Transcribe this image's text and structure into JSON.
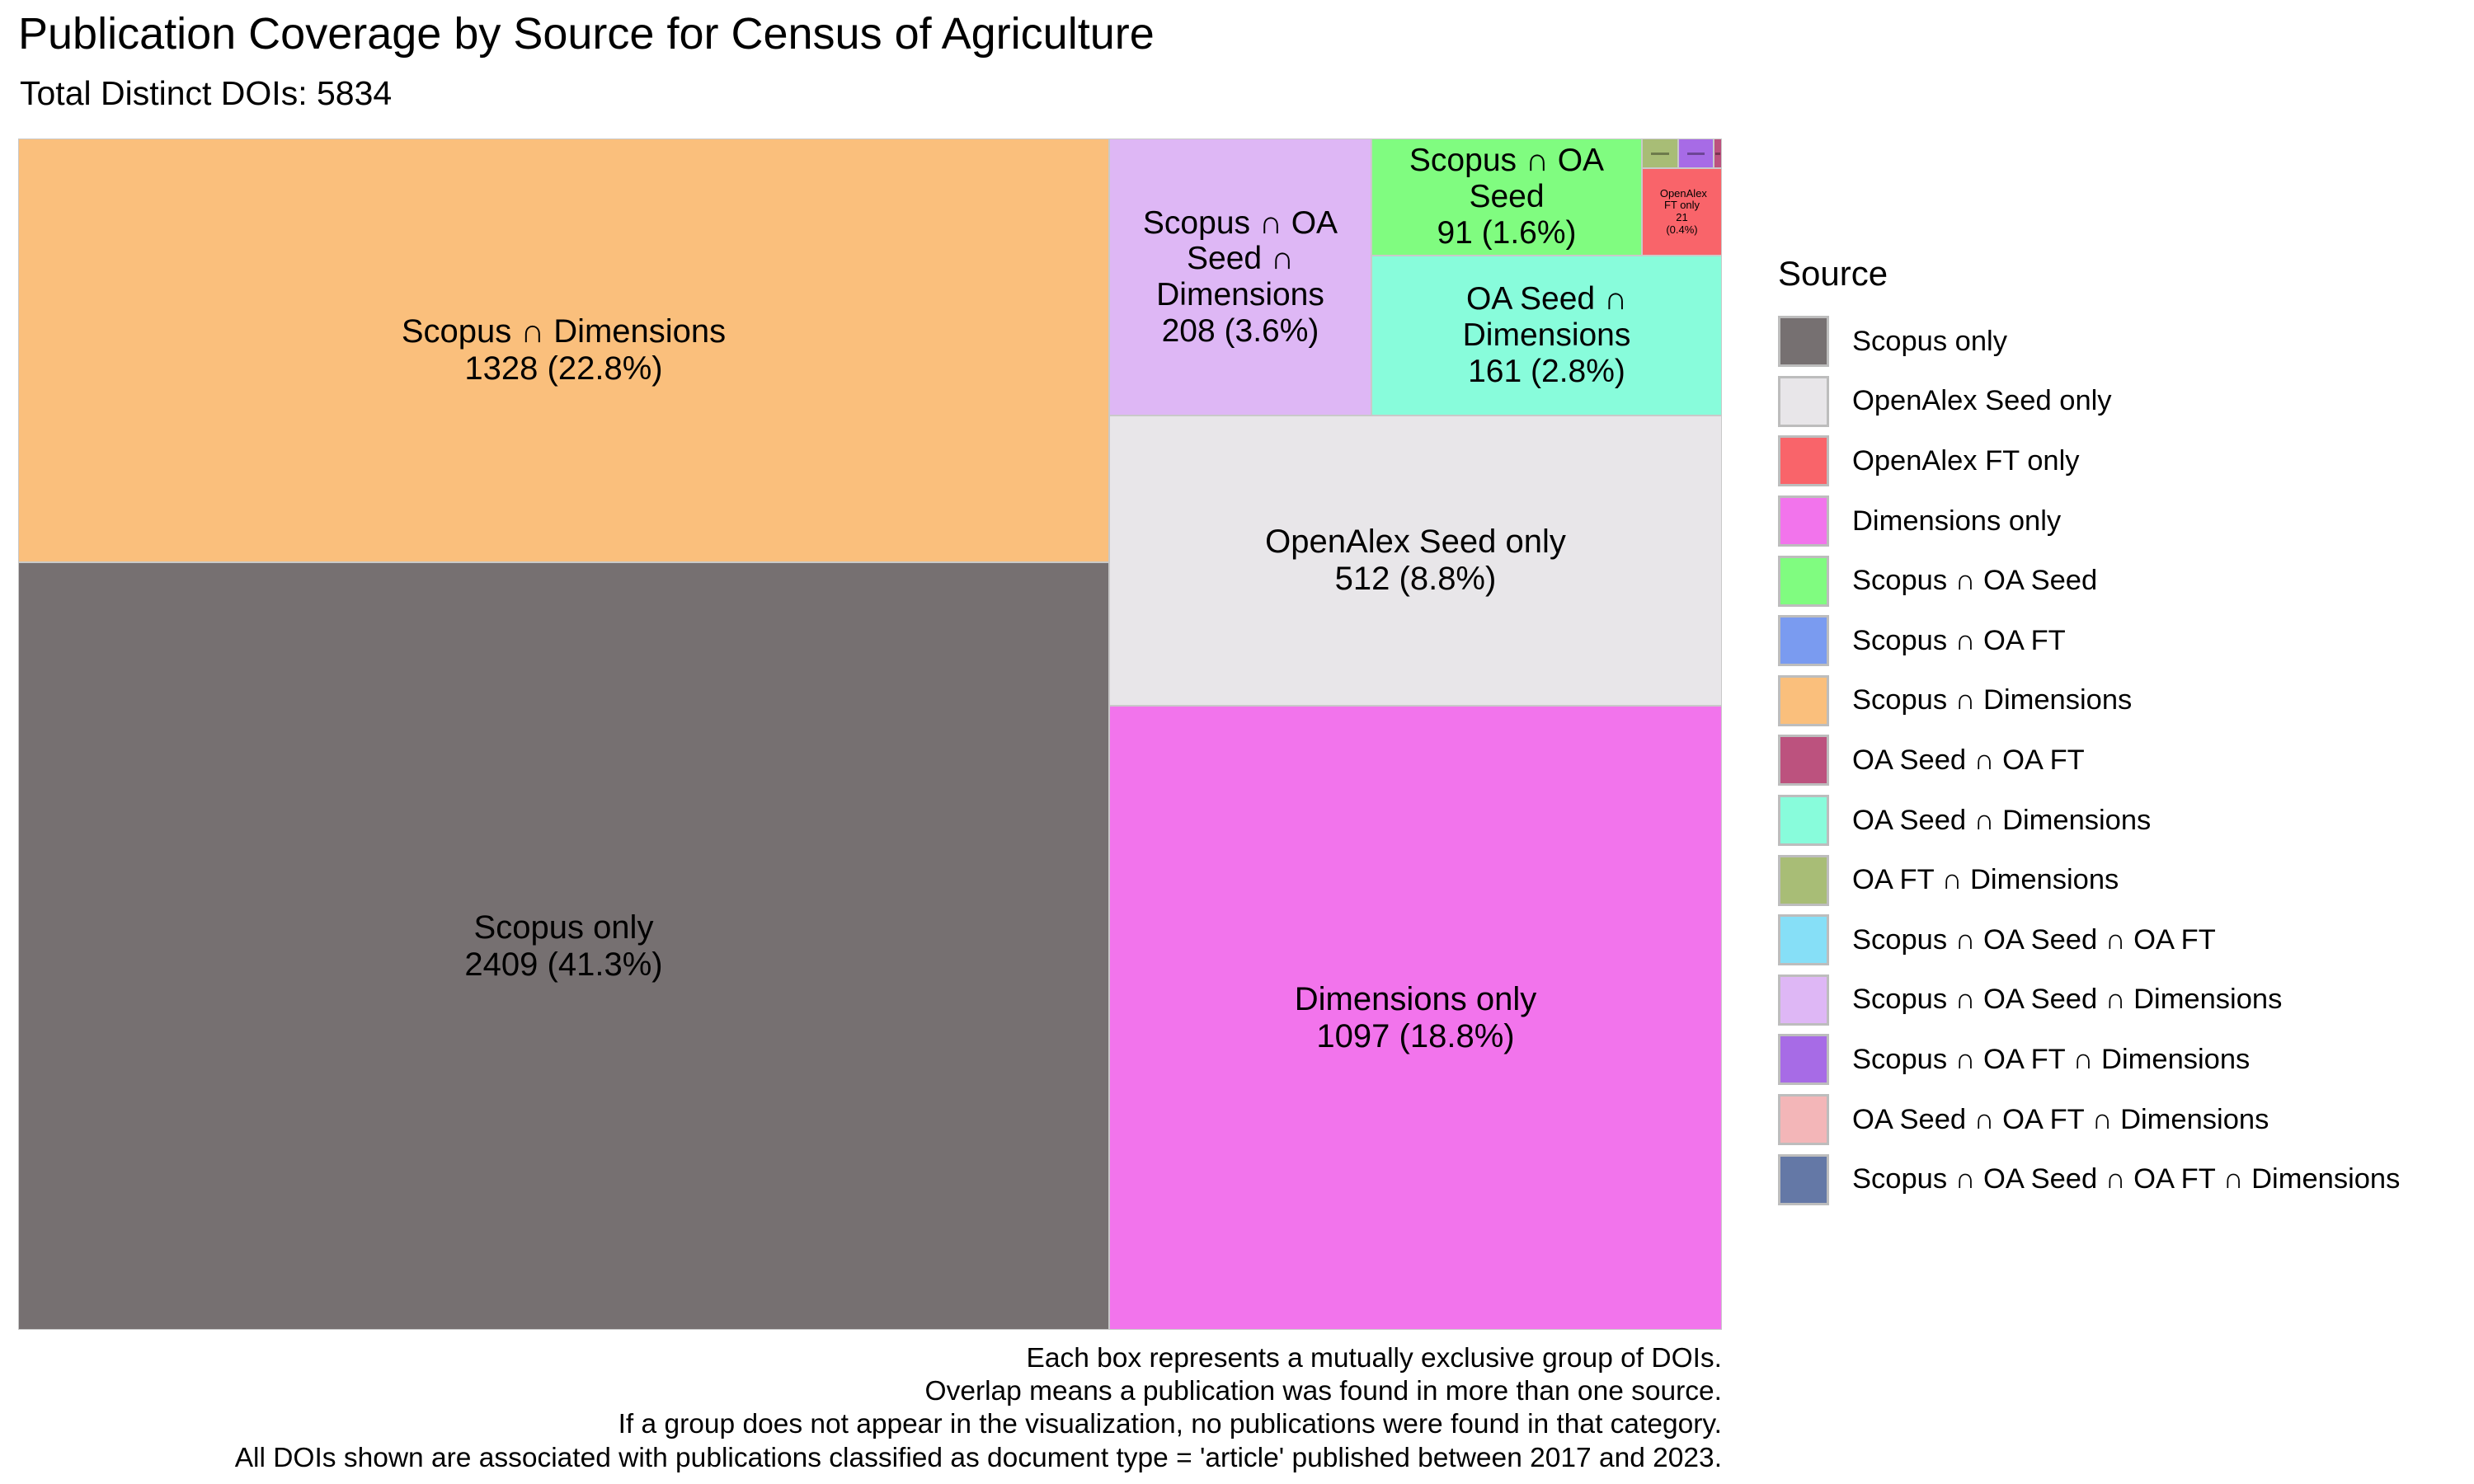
{
  "header": {
    "title": "Publication Coverage by Source for Census of Agriculture",
    "subtitle": "Total Distinct DOIs: 5834"
  },
  "chart_data": {
    "type": "treemap",
    "title": "Publication Coverage by Source for Census of Agriculture",
    "subtitle": "Total Distinct DOIs: 5834",
    "total": 5834,
    "tiles": [
      {
        "name": "Scopus only",
        "label": "Scopus only",
        "value": 2409,
        "value_label": "2409 (41.3%)",
        "color": "#767071"
      },
      {
        "name": "Scopus ∩ Dimensions",
        "label": "Scopus ∩ Dimensions",
        "value": 1328,
        "value_label": "1328 (22.8%)",
        "color": "#FABF7C"
      },
      {
        "name": "Dimensions only",
        "label": "Dimensions only",
        "value": 1097,
        "value_label": "1097 (18.8%)",
        "color": "#F274EC"
      },
      {
        "name": "OpenAlex Seed only",
        "label": "OpenAlex Seed only",
        "value": 512,
        "value_label": "512 (8.8%)",
        "color": "#E8E6E9"
      },
      {
        "name": "Scopus ∩ OA Seed ∩ Dimensions",
        "label": "Scopus ∩ OA Seed ∩ Dimensions",
        "value": 208,
        "value_label": "208 (3.6%)",
        "color": "#DEB7F5"
      },
      {
        "name": "OA Seed ∩ Dimensions",
        "label": "OA Seed ∩ Dimensions",
        "value": 161,
        "value_label": "161 (2.8%)",
        "color": "#88FCDB"
      },
      {
        "name": "Scopus ∩ OA Seed",
        "label": "Scopus ∩ OA Seed",
        "value": 91,
        "value_label": "91 (1.6%)",
        "color": "#80FC80"
      },
      {
        "name": "OpenAlex FT only",
        "label": "OpenAlex FT only",
        "value": 21,
        "value_label": "21 (0.4%)",
        "color": "#F9646A"
      },
      {
        "name": "OA FT ∩ Dimensions",
        "label": "",
        "value": 3,
        "value_label": "",
        "color": "#A8BD76"
      },
      {
        "name": "Scopus ∩ OA FT ∩ Dimensions",
        "label": "",
        "value": 3,
        "value_label": "",
        "color": "#A76BE6"
      },
      {
        "name": "OA Seed ∩ OA FT",
        "label": "",
        "value": 1,
        "value_label": "",
        "color": "#BC527E"
      }
    ],
    "legend": {
      "title": "Source",
      "position": "right",
      "items": [
        {
          "label": "Scopus only",
          "color": "#767071"
        },
        {
          "label": "OpenAlex Seed only",
          "color": "#E8E6E9"
        },
        {
          "label": "OpenAlex FT only",
          "color": "#F9646A"
        },
        {
          "label": "Dimensions only",
          "color": "#F274EC"
        },
        {
          "label": "Scopus ∩ OA Seed",
          "color": "#80FC80"
        },
        {
          "label": "Scopus ∩ OA FT",
          "color": "#7A9BF0"
        },
        {
          "label": "Scopus ∩ Dimensions",
          "color": "#FABF7C"
        },
        {
          "label": "OA Seed ∩ OA FT",
          "color": "#BC527E"
        },
        {
          "label": "OA Seed ∩ Dimensions",
          "color": "#88FCDB"
        },
        {
          "label": "OA FT ∩ Dimensions",
          "color": "#A8BD76"
        },
        {
          "label": "Scopus ∩ OA Seed ∩ OA FT",
          "color": "#86DFF7"
        },
        {
          "label": "Scopus ∩ OA Seed ∩ Dimensions",
          "color": "#DEB7F5"
        },
        {
          "label": "Scopus ∩ OA FT ∩ Dimensions",
          "color": "#A76BE6"
        },
        {
          "label": "OA Seed ∩ OA FT ∩ Dimensions",
          "color": "#F3B6B8"
        },
        {
          "label": "Scopus ∩ OA Seed ∩ OA FT ∩ Dimensions",
          "color": "#6478A6"
        }
      ]
    },
    "caption": [
      "Each box represents a mutually exclusive group of DOIs.",
      "Overlap means a publication was found in more than one source.",
      "If a group does not appear in the visualization, no publications were found in that category.",
      "All DOIs shown are associated with publications classified as document type = 'article' published between 2017 and 2023."
    ]
  }
}
